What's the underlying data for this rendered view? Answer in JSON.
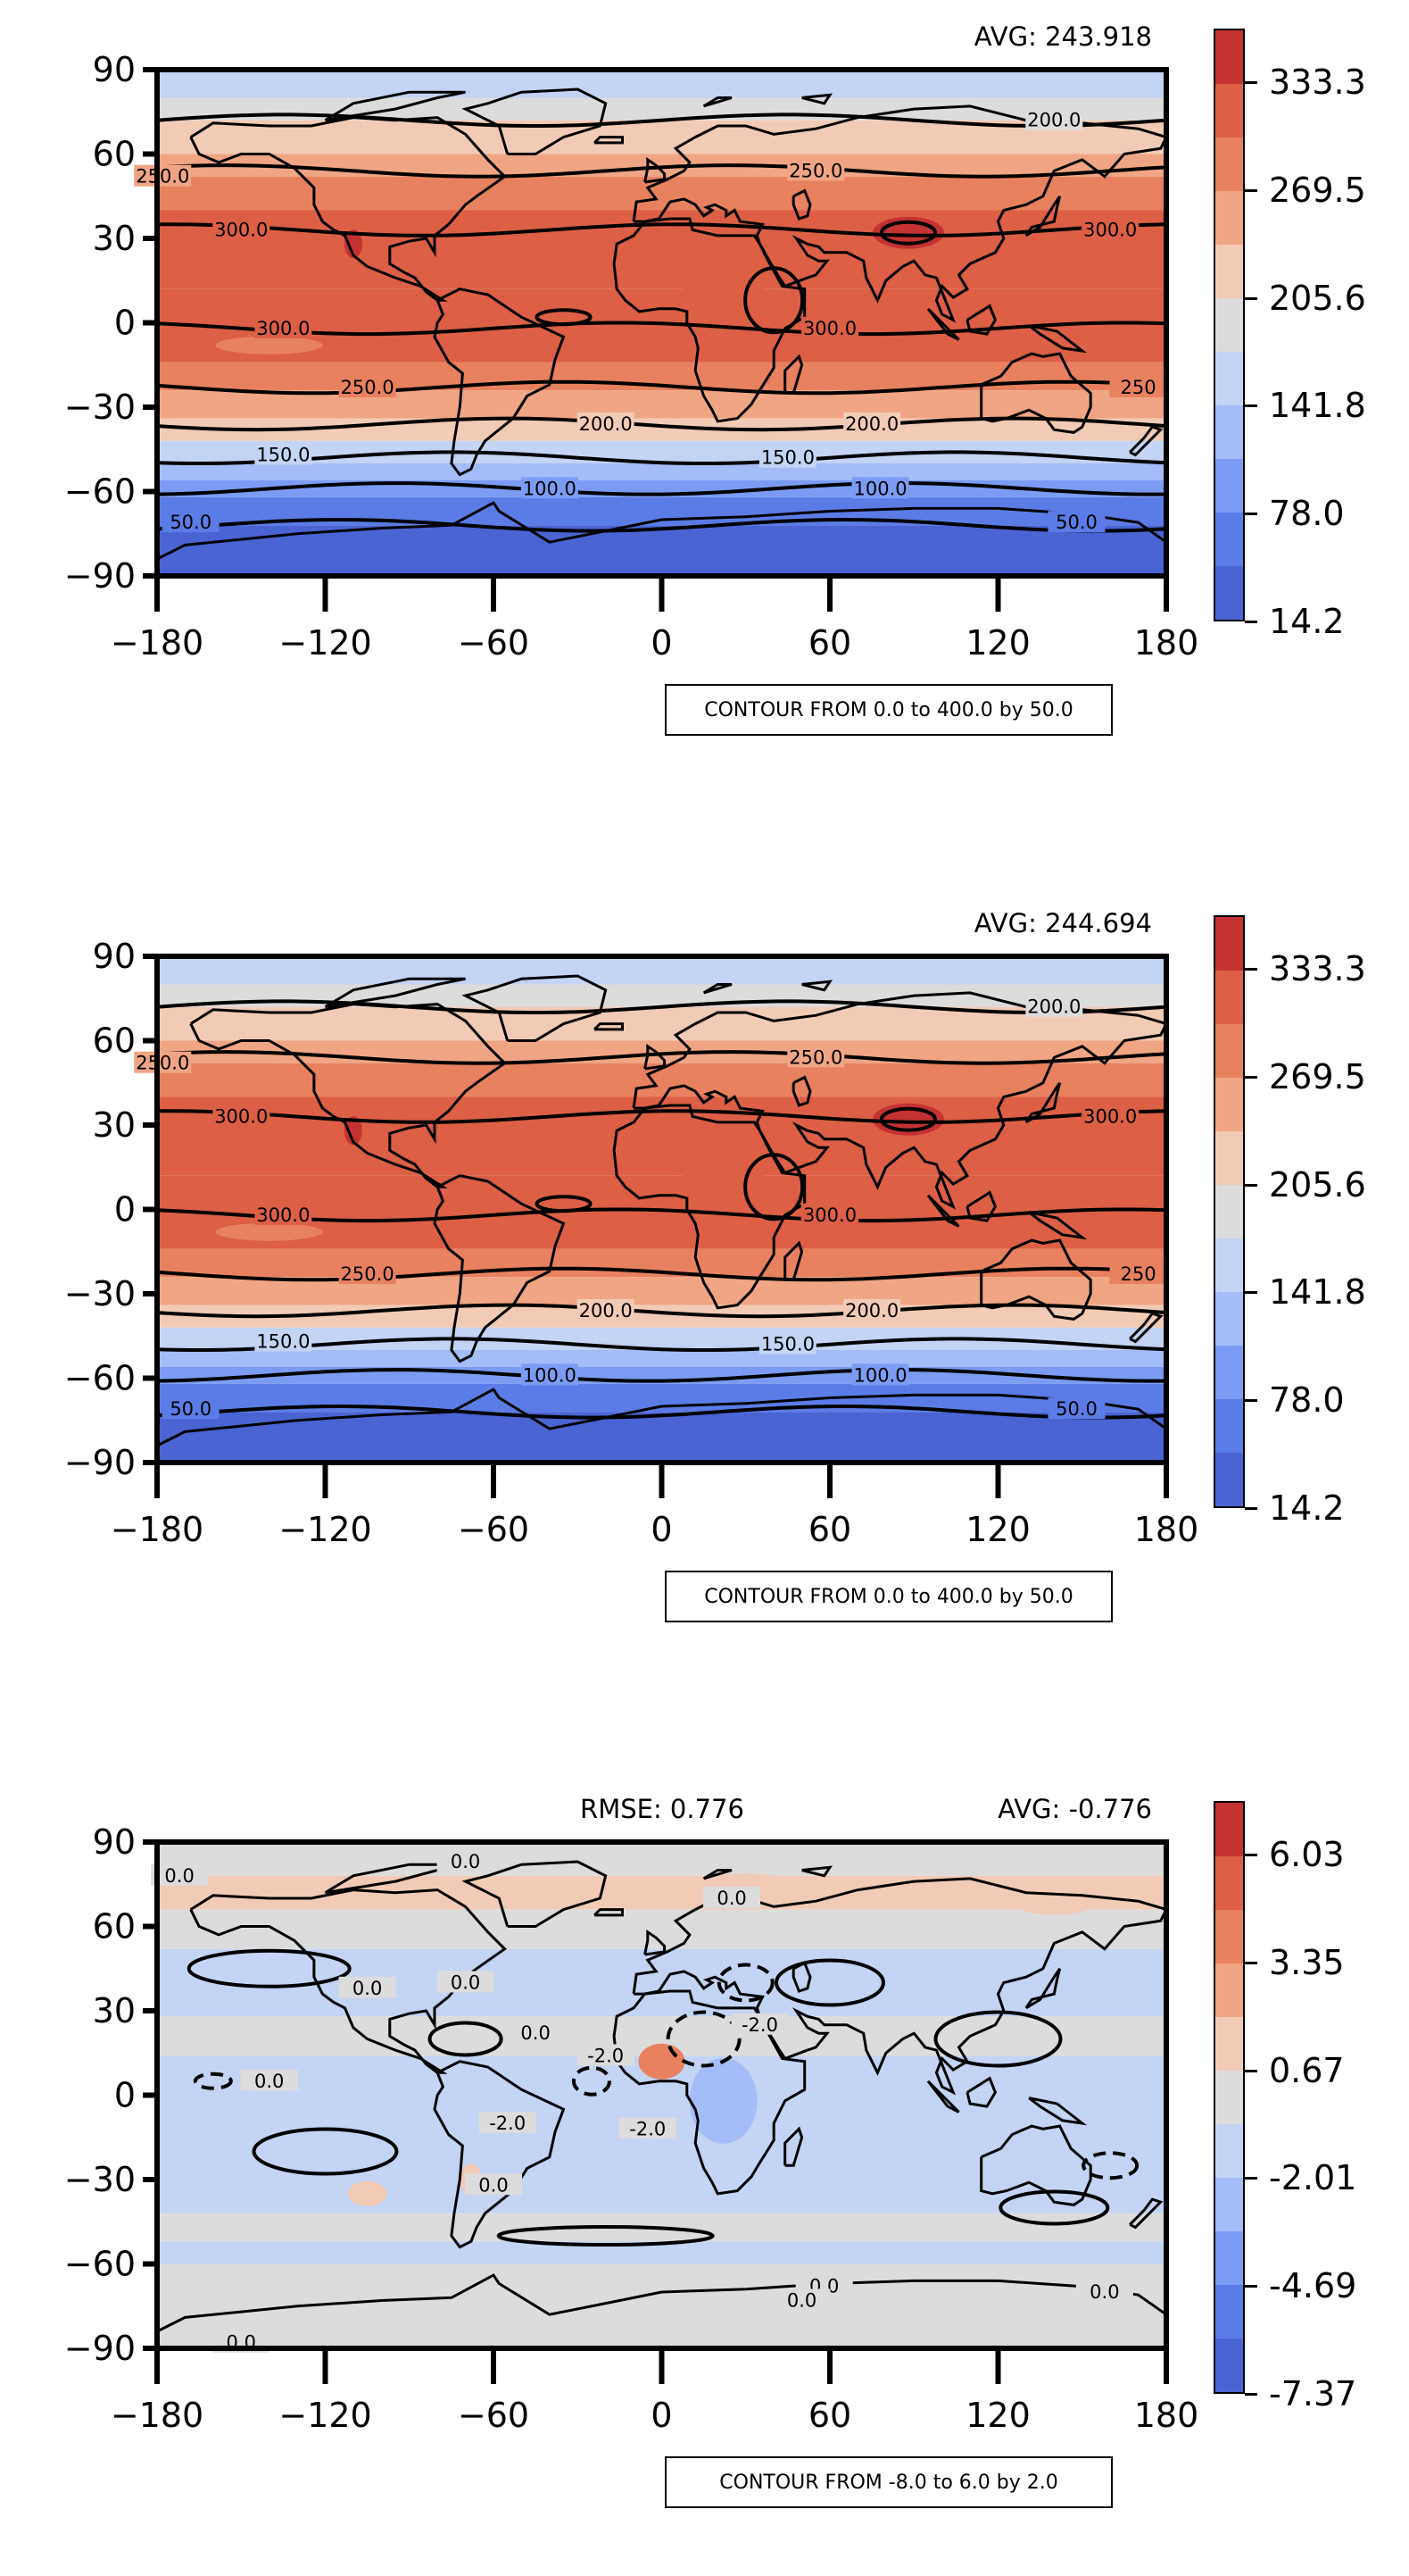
{
  "panels": [
    {
      "avg": "AVG: 243.918",
      "rmse": "",
      "contour_note": "CONTOUR FROM 0.0 to 400.0 by 50.0",
      "colorbar_labels": [
        "333.3",
        "269.5",
        "205.6",
        "141.8",
        "78.0",
        "14.2"
      ],
      "contour_labels": [
        "200.0",
        "250.0",
        "250.0",
        "300.0",
        "300.0",
        "300.0",
        "300.0",
        "250.0",
        "250",
        "200.0",
        "200.0",
        "150.0",
        "150.0",
        "100.0",
        "100.0",
        "50.0",
        "50.0"
      ]
    },
    {
      "avg": "AVG: 244.694",
      "rmse": "",
      "contour_note": "CONTOUR FROM 0.0 to 400.0 by 50.0",
      "colorbar_labels": [
        "333.3",
        "269.5",
        "205.6",
        "141.8",
        "78.0",
        "14.2"
      ],
      "contour_labels": [
        "200.0",
        "250.0",
        "250.0",
        "300.0",
        "300.0",
        "300.0",
        "300.0",
        "250.0",
        "250",
        "200.0",
        "200.0",
        "150.0",
        "150.0",
        "100.0",
        "100.0",
        "50.0",
        "50.0"
      ]
    },
    {
      "avg": "AVG: -0.776",
      "rmse": "RMSE: 0.776",
      "contour_note": "CONTOUR FROM -8.0 to 6.0 by 2.0",
      "colorbar_labels": [
        "6.03",
        "3.35",
        "0.67",
        "-2.01",
        "-4.69",
        "-7.37"
      ],
      "contour_labels": [
        "0.0",
        "0.0",
        "0.0",
        "0.0",
        "0.0",
        "0.0",
        "0.0",
        "-2.0",
        "-2.0",
        "-2.0",
        "-2.0",
        "0.0",
        "0.0",
        "0.0",
        "0.0",
        "0.0"
      ]
    }
  ],
  "axes": {
    "lat_ticks": [
      "90",
      "60",
      "30",
      "0",
      "−30",
      "−60",
      "−90"
    ],
    "lon_ticks": [
      "−180",
      "−120",
      "−60",
      "0",
      "60",
      "120",
      "180"
    ]
  },
  "colors": {
    "warm_scale": [
      "#4a64d4",
      "#5b7ce6",
      "#7c9cf4",
      "#a4bcf8",
      "#c3d4f4",
      "#dcdcdc",
      "#f2cbb6",
      "#f0a584",
      "#e8815f",
      "#dc5f46",
      "#c43232"
    ],
    "diff_scale": [
      "#4a64d4",
      "#5b7ce6",
      "#7c9cf4",
      "#a4bcf8",
      "#c3d4f4",
      "#dcdcdc",
      "#f2cbb6",
      "#f0a584",
      "#e8815f",
      "#dc5f46",
      "#c43232"
    ]
  }
}
